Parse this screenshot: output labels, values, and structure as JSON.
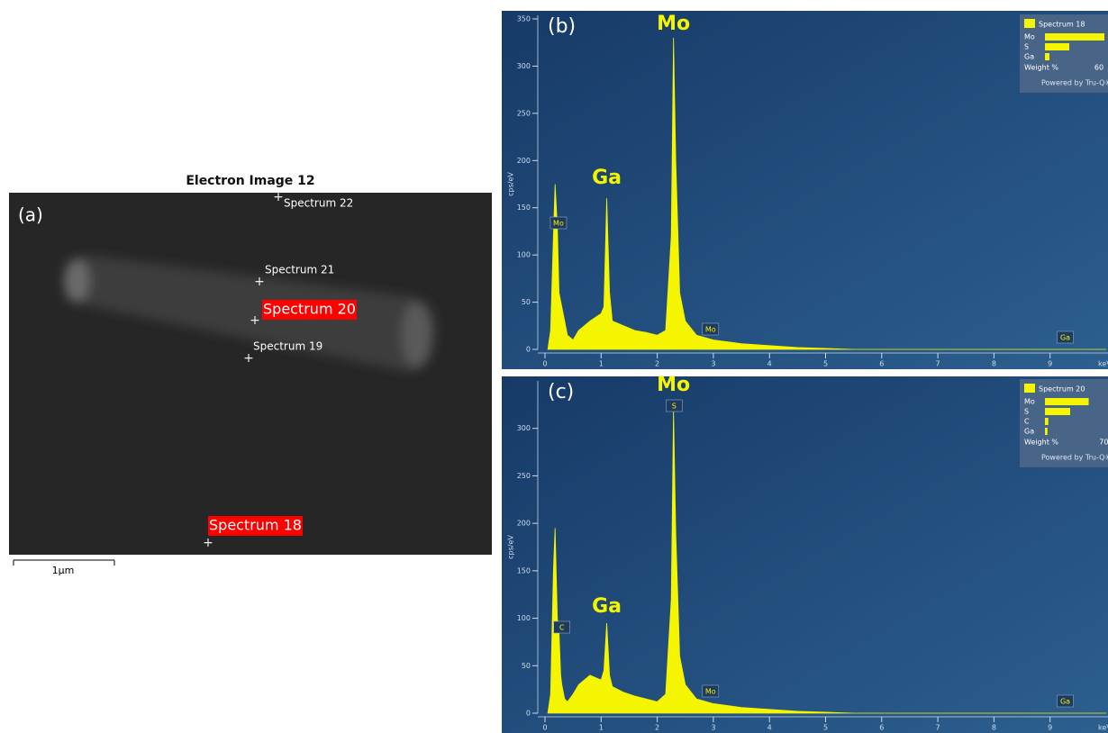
{
  "panel_a": {
    "label": "(a)",
    "title": "Electron Image 12",
    "markers": [
      {
        "label": "Spectrum 22"
      },
      {
        "label": "Spectrum 21"
      },
      {
        "label": "Spectrum 20"
      },
      {
        "label": "Spectrum 19"
      },
      {
        "label": "Spectrum 18"
      }
    ],
    "scale_bar": "1µm"
  },
  "chart_data": [
    {
      "type": "area",
      "label": "(b)",
      "y_label": "cps/eV",
      "x_label": "keV",
      "x": [
        0.05,
        0.1,
        0.15,
        0.18,
        0.22,
        0.25,
        0.3,
        0.35,
        0.4,
        0.5,
        0.6,
        0.8,
        1.0,
        1.05,
        1.1,
        1.15,
        1.2,
        1.4,
        1.6,
        1.8,
        2.0,
        2.15,
        2.25,
        2.29,
        2.33,
        2.4,
        2.5,
        2.7,
        3.0,
        3.5,
        4.0,
        4.5,
        5.0,
        5.5,
        10
      ],
      "series": [
        {
          "name": "Spectrum 18",
          "color": "#f5f500",
          "values": [
            0,
            20,
            120,
            175,
            130,
            60,
            45,
            30,
            15,
            10,
            20,
            30,
            38,
            45,
            160,
            60,
            30,
            25,
            20,
            18,
            15,
            20,
            120,
            330,
            200,
            60,
            30,
            15,
            10,
            6,
            4,
            2,
            1,
            0,
            0
          ]
        }
      ],
      "xlim": [
        0,
        10
      ],
      "xticks": [
        0,
        1,
        2,
        3,
        4,
        5,
        6,
        7,
        8,
        9
      ],
      "ylim": [
        0,
        350
      ],
      "yticks": [
        0,
        50,
        100,
        150,
        200,
        250,
        300,
        350
      ],
      "peak_labels": [
        "Mo",
        "Ga"
      ],
      "annotations": [
        "Mo",
        "Mo",
        "Ga"
      ],
      "inset": {
        "categories": [
          "Mo",
          "S",
          "Ga"
        ],
        "values": [
          66,
          27,
          5
        ],
        "xlim": [
          0,
          70
        ],
        "xticks": [
          60
        ],
        "x_label": "Weight %",
        "footer": "Powered by Tru-Q®"
      }
    },
    {
      "type": "area",
      "label": "(c)",
      "y_label": "cps/eV",
      "x_label": "keV",
      "x": [
        0.05,
        0.1,
        0.15,
        0.18,
        0.22,
        0.25,
        0.28,
        0.3,
        0.35,
        0.4,
        0.5,
        0.6,
        0.8,
        1.0,
        1.05,
        1.1,
        1.15,
        1.2,
        1.4,
        1.6,
        1.8,
        2.0,
        2.15,
        2.25,
        2.29,
        2.33,
        2.4,
        2.5,
        2.7,
        3.0,
        3.5,
        4.0,
        4.5,
        5.0,
        5.5,
        10
      ],
      "series": [
        {
          "name": "Spectrum 20",
          "color": "#f5f500",
          "values": [
            0,
            20,
            150,
            195,
            100,
            85,
            40,
            30,
            15,
            12,
            20,
            30,
            40,
            35,
            45,
            95,
            40,
            28,
            22,
            18,
            15,
            12,
            20,
            120,
            320,
            190,
            60,
            30,
            15,
            10,
            6,
            4,
            2,
            1,
            0,
            0
          ]
        }
      ],
      "xlim": [
        0,
        10
      ],
      "xticks": [
        0,
        1,
        2,
        3,
        4,
        5,
        6,
        7,
        8,
        9
      ],
      "ylim": [
        0,
        350
      ],
      "yticks": [
        0,
        50,
        100,
        150,
        200,
        250,
        300
      ],
      "peak_labels": [
        "Mo",
        "Ga"
      ],
      "annotations": [
        "C",
        "S",
        "Mo",
        "Ga"
      ],
      "inset": {
        "categories": [
          "Mo",
          "S",
          "C",
          "Ga"
        ],
        "values": [
          52,
          30,
          4,
          3
        ],
        "xlim": [
          0,
          75
        ],
        "xticks": [
          70
        ],
        "x_label": "Weight %",
        "footer": "Powered by Tru-Q®"
      }
    }
  ]
}
